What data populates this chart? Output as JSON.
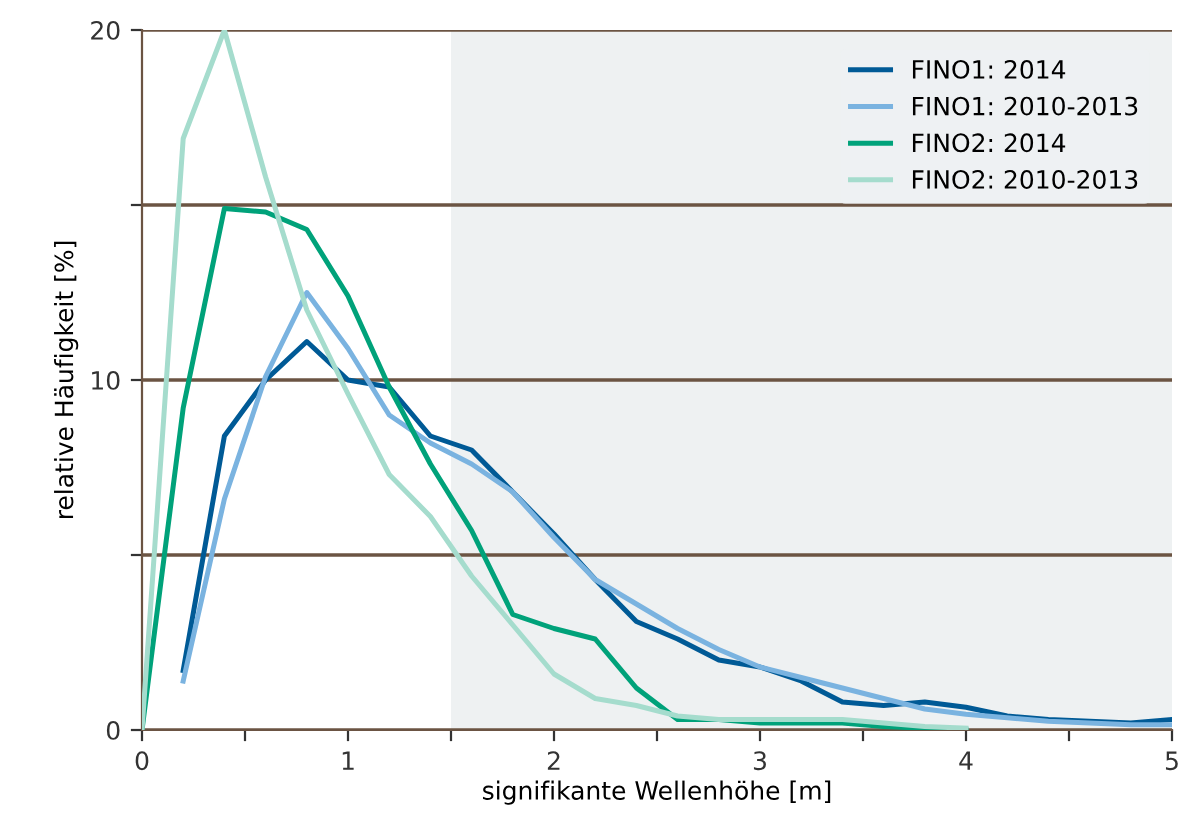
{
  "chart_data": {
    "type": "line",
    "xlabel": "signifikante Wellenhöhe [m]",
    "ylabel": "relative Häufigkeit [%]",
    "xlim": [
      0,
      5
    ],
    "ylim": [
      0,
      20
    ],
    "xticks": [
      0,
      {
        "value": 0.5,
        "label": null
      },
      1,
      {
        "value": 1.5,
        "label": null
      },
      2,
      {
        "value": 2.5,
        "label": null
      },
      3,
      {
        "value": 3.5,
        "label": null
      },
      4,
      {
        "value": 4.5,
        "label": null
      },
      5
    ],
    "yticks": [
      0,
      {
        "value": 5,
        "label": null
      },
      10,
      {
        "value": 15,
        "label": null
      },
      20
    ],
    "grid": "y",
    "legend": "top right",
    "bands": [
      {
        "axis": "x",
        "from": 1.5,
        "to": 5,
        "color": "#eef1f2"
      }
    ],
    "series": [
      {
        "name": "FINO1: 2014",
        "color": "#005a96",
        "x": [
          0.2,
          0.4,
          0.6,
          0.8,
          1.0,
          1.2,
          1.4,
          1.6,
          1.8,
          2.0,
          2.2,
          2.4,
          2.6,
          2.8,
          3.0,
          3.2,
          3.4,
          3.6,
          3.8,
          4.0,
          4.2,
          4.4,
          4.6,
          4.8,
          5.0
        ],
        "values": [
          1.7,
          8.4,
          10.0,
          11.1,
          10.0,
          9.8,
          8.4,
          8.0,
          6.8,
          5.6,
          4.3,
          3.1,
          2.6,
          2.0,
          1.8,
          1.4,
          0.8,
          0.7,
          0.8,
          0.65,
          0.4,
          0.3,
          0.25,
          0.2,
          0.3
        ]
      },
      {
        "name": "FINO1: 2010-2013",
        "color": "#7ab3e0",
        "x": [
          0.2,
          0.4,
          0.6,
          0.8,
          1.0,
          1.2,
          1.4,
          1.6,
          1.8,
          2.0,
          2.2,
          2.4,
          2.6,
          2.8,
          3.0,
          3.2,
          3.4,
          3.6,
          3.8,
          4.0,
          4.2,
          4.4,
          4.6,
          4.8,
          5.0
        ],
        "values": [
          1.4,
          6.6,
          10.1,
          12.5,
          10.9,
          9.0,
          8.2,
          7.6,
          6.8,
          5.5,
          4.3,
          3.6,
          2.9,
          2.3,
          1.8,
          1.5,
          1.2,
          0.9,
          0.6,
          0.45,
          0.35,
          0.25,
          0.2,
          0.15,
          0.15
        ]
      },
      {
        "name": "FINO2: 2014",
        "color": "#00a27a",
        "x": [
          0,
          0.2,
          0.4,
          0.6,
          0.8,
          1.0,
          1.2,
          1.4,
          1.6,
          1.8,
          2.0,
          2.2,
          2.4,
          2.6,
          2.8,
          3.0,
          3.2,
          3.4,
          3.6,
          3.8,
          4.0
        ],
        "values": [
          0,
          9.2,
          14.9,
          14.8,
          14.3,
          12.4,
          9.8,
          7.6,
          5.7,
          3.3,
          2.9,
          2.6,
          1.2,
          0.3,
          0.3,
          0.2,
          0.2,
          0.2,
          0.1,
          0.05,
          0.0
        ]
      },
      {
        "name": "FINO2: 2010-2013",
        "color": "#a5dccd",
        "x": [
          0,
          0.2,
          0.4,
          0.6,
          0.8,
          1.0,
          1.2,
          1.4,
          1.6,
          1.8,
          2.0,
          2.2,
          2.4,
          2.6,
          2.8,
          3.0,
          3.2,
          3.4,
          3.6,
          3.8,
          4.0
        ],
        "values": [
          0,
          16.9,
          20.0,
          15.8,
          12.0,
          9.6,
          7.3,
          6.1,
          4.4,
          3.0,
          1.6,
          0.9,
          0.7,
          0.4,
          0.3,
          0.3,
          0.3,
          0.3,
          0.2,
          0.1,
          0.05
        ]
      }
    ]
  }
}
